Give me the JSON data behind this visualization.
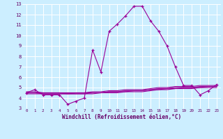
{
  "background_color": "#cceeff",
  "grid_color": "#ffffff",
  "line_color": "#990099",
  "xlabel": "Windchill (Refroidissement éolien,°C)",
  "xlabel_color": "#660066",
  "tick_color": "#660066",
  "xlim": [
    -0.5,
    23.5
  ],
  "ylim": [
    3,
    13
  ],
  "xticks": [
    0,
    1,
    2,
    3,
    4,
    5,
    6,
    7,
    8,
    9,
    10,
    11,
    12,
    13,
    14,
    15,
    16,
    17,
    18,
    19,
    20,
    21,
    22,
    23
  ],
  "yticks": [
    3,
    4,
    5,
    6,
    7,
    8,
    9,
    10,
    11,
    12,
    13
  ],
  "main_line_x": [
    0,
    1,
    2,
    3,
    4,
    5,
    6,
    7,
    8,
    9,
    10,
    11,
    12,
    13,
    14,
    15,
    16,
    17,
    18,
    19,
    20,
    21,
    22,
    23
  ],
  "main_line_y": [
    4.5,
    4.8,
    4.3,
    4.3,
    4.3,
    3.4,
    3.7,
    4.0,
    8.6,
    6.5,
    10.4,
    11.1,
    11.9,
    12.8,
    12.8,
    11.4,
    10.4,
    9.0,
    7.0,
    5.2,
    5.2,
    4.3,
    4.7,
    5.3
  ],
  "flat_line1_y": [
    4.5,
    4.5,
    4.4,
    4.4,
    4.4,
    4.4,
    4.4,
    4.4,
    4.5,
    4.5,
    4.6,
    4.6,
    4.7,
    4.7,
    4.7,
    4.8,
    4.9,
    4.9,
    5.0,
    5.0,
    5.0,
    5.1,
    5.1,
    5.1
  ],
  "flat_line2_y": [
    4.6,
    4.6,
    4.5,
    4.5,
    4.5,
    4.5,
    4.5,
    4.5,
    4.6,
    4.6,
    4.7,
    4.7,
    4.8,
    4.8,
    4.8,
    4.9,
    5.0,
    5.0,
    5.1,
    5.1,
    5.1,
    5.2,
    5.2,
    5.2
  ],
  "flat_line3_y": [
    4.4,
    4.4,
    4.4,
    4.4,
    4.4,
    4.4,
    4.4,
    4.4,
    4.4,
    4.5,
    4.5,
    4.5,
    4.6,
    4.6,
    4.6,
    4.7,
    4.8,
    4.8,
    4.9,
    4.9,
    4.9,
    5.0,
    5.0,
    5.0
  ],
  "flat_line4_y": [
    4.5,
    4.5,
    4.5,
    4.5,
    4.5,
    4.4,
    4.5,
    4.5,
    4.5,
    4.5,
    4.6,
    4.6,
    4.6,
    4.7,
    4.7,
    4.8,
    4.8,
    4.9,
    4.9,
    5.0,
    5.0,
    5.0,
    5.1,
    5.1
  ]
}
